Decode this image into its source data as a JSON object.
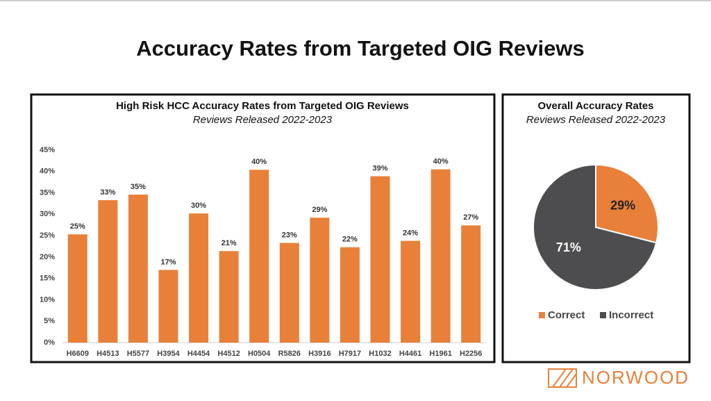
{
  "header": {
    "title": "Accuracy Rates from Targeted OIG Reviews"
  },
  "chart_data": [
    {
      "type": "bar",
      "title": "High Risk HCC Accuracy Rates from Targeted OIG Reviews",
      "subtitle": "Reviews Released 2022-2023",
      "categories": [
        "H6609",
        "H4513",
        "H5577",
        "H3954",
        "H4454",
        "H4512",
        "H0504",
        "R5826",
        "H3916",
        "H7917",
        "H1032",
        "H4461",
        "H1961",
        "H2256"
      ],
      "values": [
        25.3,
        33.3,
        34.6,
        17,
        30.2,
        21.4,
        40.4,
        23.3,
        29.2,
        22.3,
        38.9,
        23.8,
        40.5,
        27.4
      ],
      "value_labels": [
        "25%",
        "33%",
        "35%",
        "17%",
        "30%",
        "21%",
        "40%",
        "23%",
        "29%",
        "22%",
        "39%",
        "24%",
        "40%",
        "27%"
      ],
      "color": "#e8803a",
      "ylim": [
        0,
        45
      ],
      "yticks": [
        {
          "value": 0,
          "label": "0%"
        },
        {
          "value": 5,
          "label": "5%"
        },
        {
          "value": 10,
          "label": "10%"
        },
        {
          "value": 15,
          "label": "15%"
        },
        {
          "value": 20,
          "label": "20%"
        },
        {
          "value": 25,
          "label": "25%"
        },
        {
          "value": 30,
          "label": "30%"
        },
        {
          "value": 35,
          "label": "35%"
        },
        {
          "value": 40,
          "label": "40%"
        },
        {
          "value": 45,
          "label": "45%"
        }
      ],
      "grid": false
    },
    {
      "type": "pie",
      "title": "Overall Accuracy Rates",
      "subtitle": "Reviews Released 2022-2023",
      "categories": [
        "Correct",
        "Incorrect"
      ],
      "values": [
        29,
        71
      ],
      "value_labels": [
        "29%",
        "71%"
      ],
      "colors": [
        "#e8803a",
        "#4d4d4f"
      ],
      "legend": "bottom"
    }
  ],
  "logo": {
    "text": "NORWOOD"
  }
}
